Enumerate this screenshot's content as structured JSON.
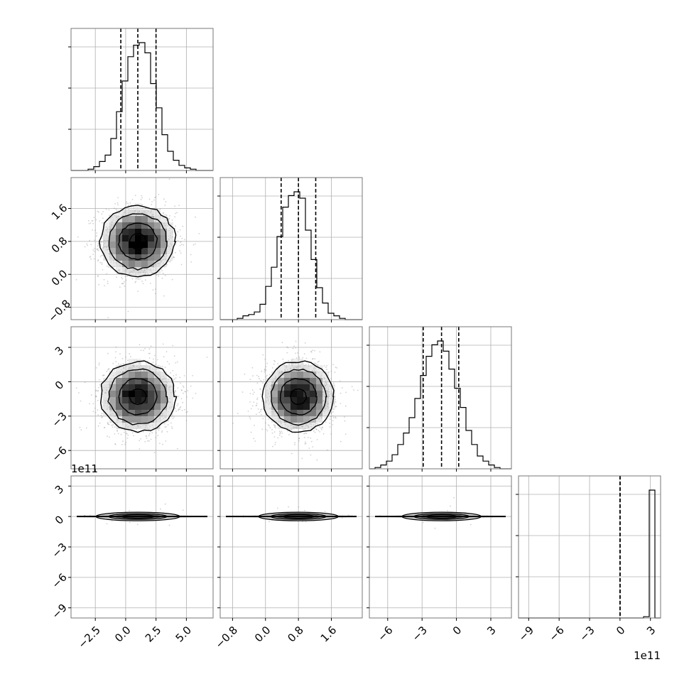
{
  "chart_data": {
    "type": "corner",
    "grid": true,
    "panel_border_color": "#777777",
    "grid_color": "#b0b0b0",
    "line_color": "#000000",
    "point_color": "#9a9a9a",
    "density_max_color": "#000000",
    "parameters": [
      {
        "index": 0,
        "range": [
          -4.5,
          7.2
        ],
        "ticks": [
          -2.5,
          0.0,
          2.5,
          5.0
        ],
        "tick_labels": [
          "−2.5",
          "0.0",
          "2.5",
          "5.0"
        ],
        "quantiles": [
          -0.4,
          1.0,
          2.5
        ],
        "center": 1.0,
        "sigma": 1.5,
        "hist_bins": [
          0,
          0,
          0,
          1,
          3,
          7,
          12,
          25,
          46,
          70,
          89,
          98,
          100,
          92,
          68,
          49,
          28,
          15,
          8,
          4,
          2,
          1,
          0,
          0,
          0
        ]
      },
      {
        "index": 1,
        "range": [
          -1.1,
          2.35
        ],
        "ticks": [
          -0.8,
          0.0,
          0.8,
          1.6
        ],
        "tick_labels": [
          "−0.8",
          "0.0",
          "0.8",
          "1.6"
        ],
        "quantiles": [
          0.38,
          0.8,
          1.22
        ],
        "center": 0.8,
        "sigma": 0.42,
        "hist_bins": [
          0,
          0,
          0,
          1,
          3,
          4,
          6,
          12,
          26,
          41,
          65,
          88,
          97,
          100,
          95,
          70,
          47,
          25,
          13,
          5,
          3,
          1,
          0,
          0,
          0
        ]
      },
      {
        "index": 2,
        "range": [
          -7.6,
          4.8
        ],
        "ticks": [
          -6,
          -3,
          0,
          3
        ],
        "tick_labels": [
          "−6",
          "−3",
          "0",
          "3"
        ],
        "quantiles": [
          -2.9,
          -1.3,
          0.2
        ],
        "center": -1.3,
        "sigma": 1.5,
        "hist_bins": [
          0,
          1,
          3,
          6,
          11,
          19,
          28,
          40,
          55,
          73,
          88,
          97,
          100,
          92,
          78,
          63,
          48,
          30,
          19,
          10,
          6,
          3,
          1,
          0,
          0
        ]
      },
      {
        "index": 3,
        "range": [
          -1000000000000.0,
          400000000000.0
        ],
        "ticks": [
          -900000000000.0,
          -600000000000.0,
          -300000000000.0,
          0,
          300000000000.0
        ],
        "tick_labels": [
          "−9",
          "−6",
          "−3",
          "0",
          "3"
        ],
        "offset_text": "1e11",
        "quantiles": [
          0,
          0,
          0
        ],
        "center": 0.0,
        "sigma": 12000000000.0,
        "hist_bins": [
          0,
          0,
          0,
          0,
          0,
          0,
          0,
          0,
          0,
          0,
          0,
          0,
          0,
          0,
          0,
          0,
          0,
          0,
          0,
          0,
          0,
          0,
          1,
          100,
          0
        ]
      }
    ]
  }
}
